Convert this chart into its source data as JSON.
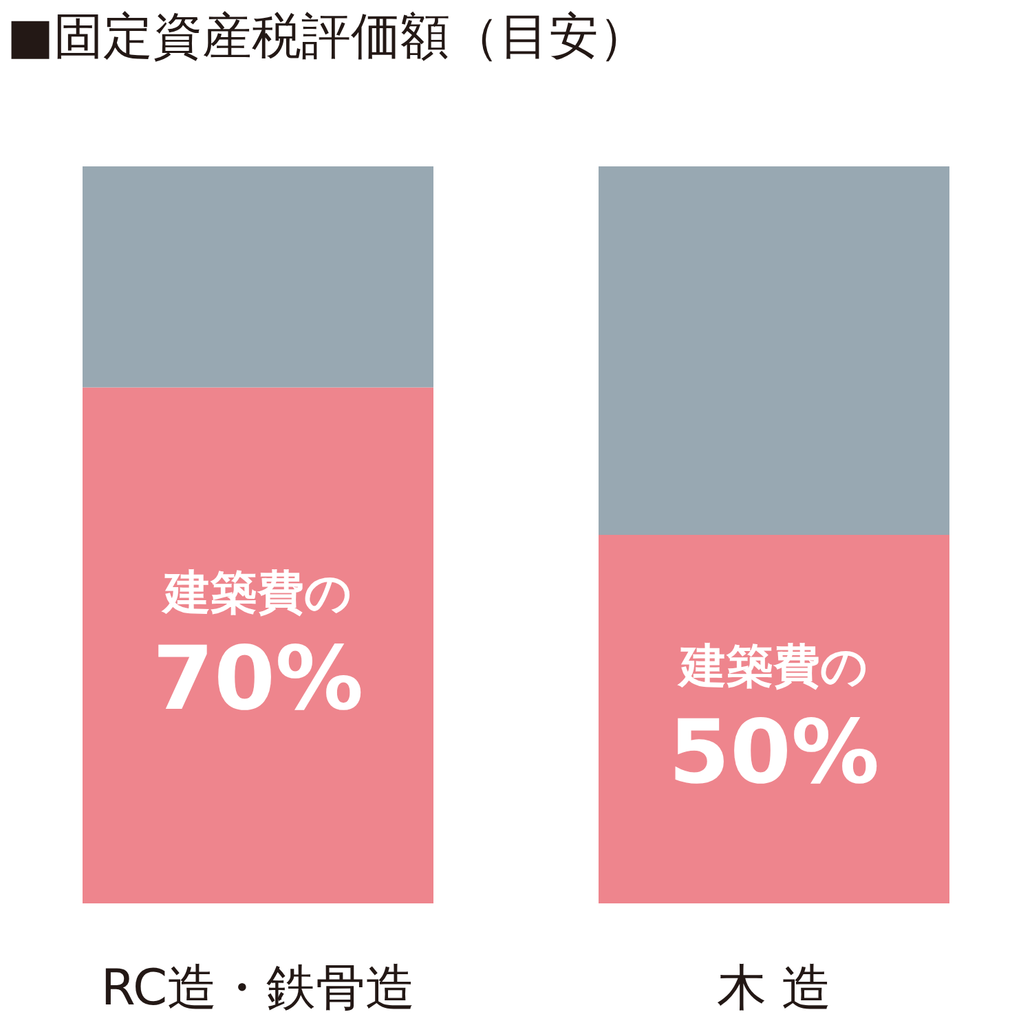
{
  "chart_data": {
    "type": "bar",
    "title": "■固定資産税評価額（目安）",
    "categories": [
      "RC造・鉄骨造",
      "木 造"
    ],
    "stacked": true,
    "series": [
      {
        "color": "#ee858d",
        "values": [
          70,
          50
        ],
        "value_labels": [
          "建築費の\n70%",
          "建築費の\n50%"
        ]
      },
      {
        "color": "#98a8b2",
        "values": [
          30,
          50
        ]
      }
    ]
  }
}
